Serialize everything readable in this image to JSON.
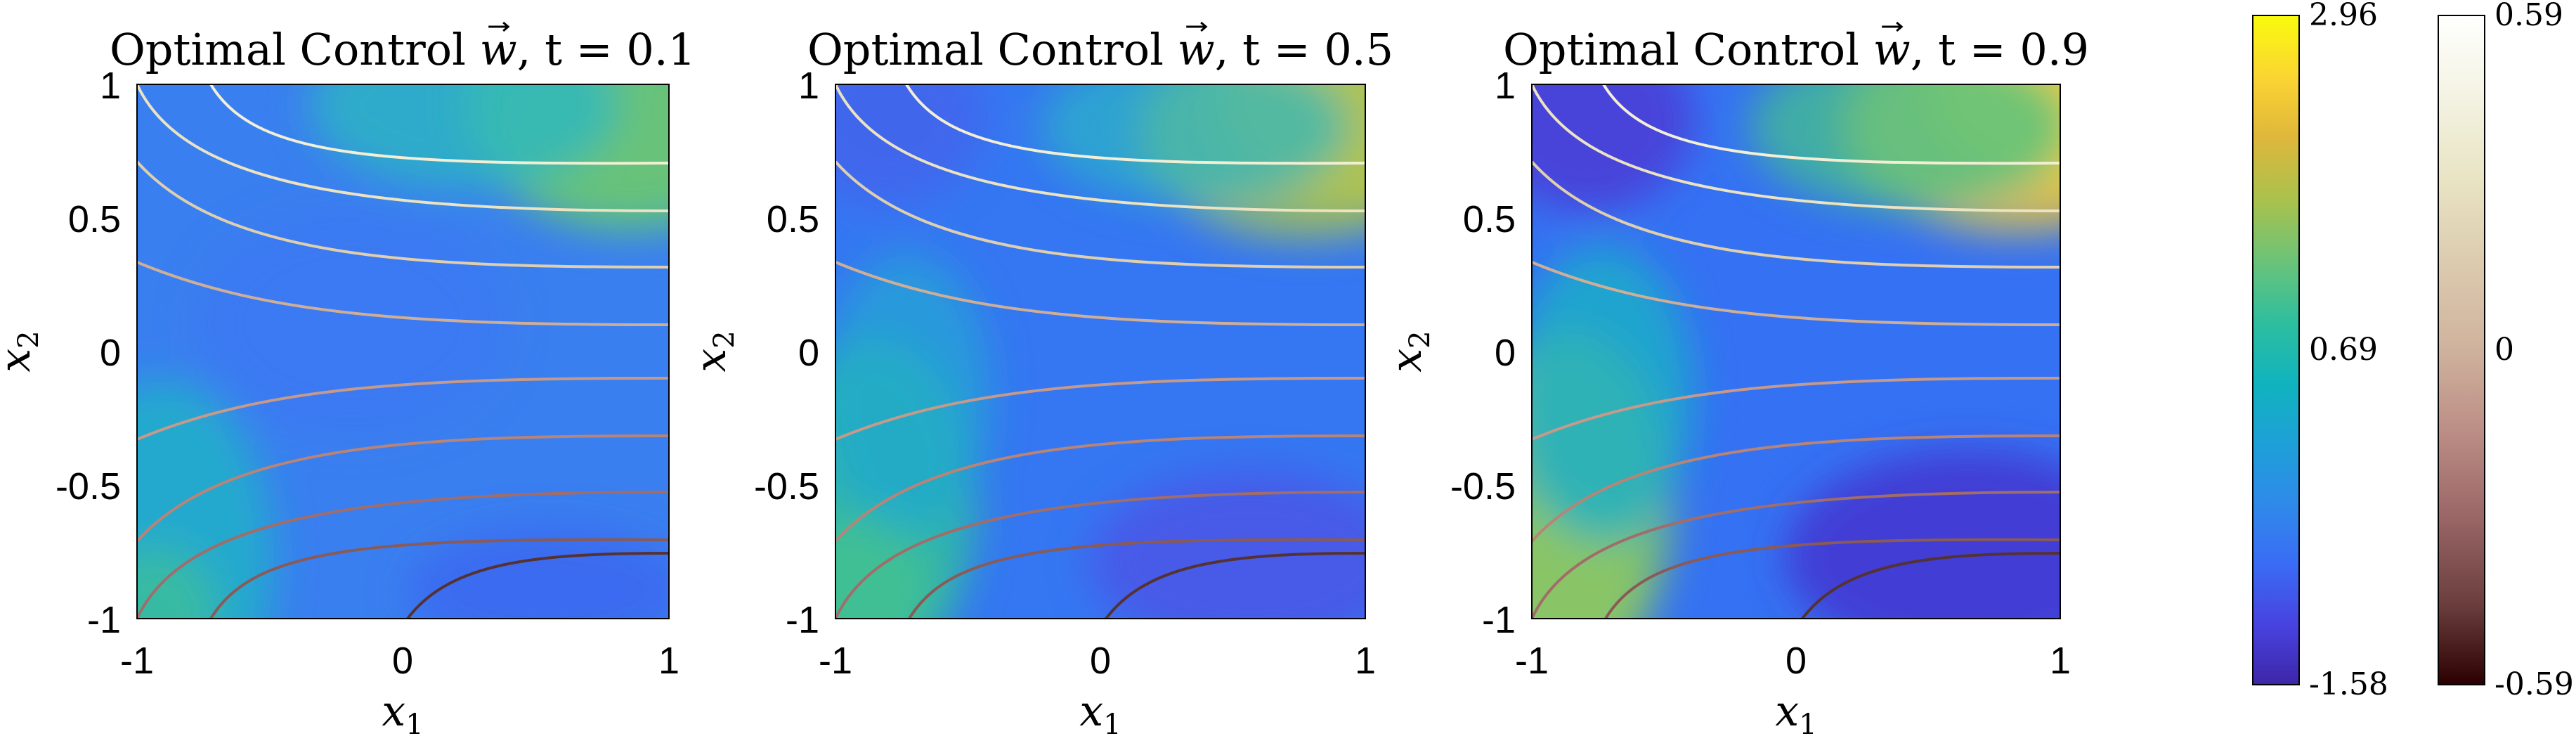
{
  "chart_data": [
    {
      "type": "heatmap",
      "title_prefix": "Optimal Control ",
      "title_var": "w",
      "title_suffix": ", t = 0.1",
      "time": 0.1,
      "xlabel": "x",
      "xlabel_sub": "1",
      "ylabel": "x",
      "ylabel_sub": "2",
      "xlim": [
        -1,
        1
      ],
      "ylim": [
        -1,
        1
      ],
      "xticks": [
        "-1",
        "0",
        "1"
      ],
      "yticks": [
        "-1",
        "-0.5",
        "0",
        "0.5",
        "1"
      ],
      "colorbar": "parula",
      "overlay": "level curves of x1*x2 style hyperbolas"
    },
    {
      "type": "heatmap",
      "title_prefix": "Optimal Control ",
      "title_var": "w",
      "title_suffix": ", t = 0.5",
      "time": 0.5,
      "xlabel": "x",
      "xlabel_sub": "1",
      "ylabel": "x",
      "ylabel_sub": "2",
      "xlim": [
        -1,
        1
      ],
      "ylim": [
        -1,
        1
      ],
      "xticks": [
        "-1",
        "0",
        "1"
      ],
      "yticks": [
        "-1",
        "-0.5",
        "0",
        "0.5",
        "1"
      ]
    },
    {
      "type": "heatmap",
      "title_prefix": "Optimal Control ",
      "title_var": "w",
      "title_suffix": ", t = 0.9",
      "time": 0.9,
      "xlabel": "x",
      "xlabel_sub": "1",
      "ylabel": "x",
      "ylabel_sub": "2",
      "xlim": [
        -1,
        1
      ],
      "ylim": [
        -1,
        1
      ],
      "xticks": [
        "-1",
        "0",
        "1"
      ],
      "yticks": [
        "-1",
        "-0.5",
        "0",
        "0.5",
        "1"
      ]
    }
  ],
  "colorbars": [
    {
      "name": "control",
      "colormap": "parula",
      "min": -1.58,
      "max": 2.96,
      "ticks": [
        "2.96",
        "0.69",
        "-1.58"
      ]
    },
    {
      "name": "contours",
      "colormap": "pink",
      "min": -0.59,
      "max": 0.59,
      "ticks": [
        "0.59",
        "0",
        "-0.59"
      ]
    }
  ],
  "colors": {
    "parula": [
      "#3e26a8",
      "#4743e0",
      "#3a6cf5",
      "#2f8aea",
      "#1ea0d8",
      "#10b3be",
      "#2dbe9f",
      "#69c37a",
      "#a7c24e",
      "#e0b73b",
      "#fbd632",
      "#f9fb0e"
    ],
    "pink": [
      "#2c0000",
      "#6b3e3e",
      "#9a6666",
      "#bc8e86",
      "#cfb29d",
      "#dbc9ad",
      "#e8e3c2",
      "#f4f3e3",
      "#ffffff"
    ]
  }
}
